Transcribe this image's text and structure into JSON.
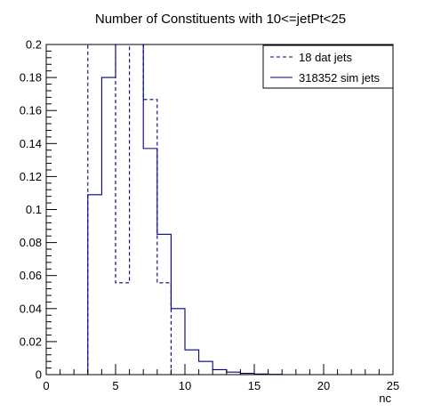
{
  "chart_data": {
    "type": "step-histogram",
    "title": "Number of Constituents with 10<=jetPt<25",
    "xlabel": "nc",
    "ylabel": "",
    "xlim": [
      0,
      25
    ],
    "ylim": [
      0,
      0.2
    ],
    "xticks": [
      {
        "value": 0,
        "label": "0"
      },
      {
        "value": 5,
        "label": "5"
      },
      {
        "value": 10,
        "label": "10"
      },
      {
        "value": 15,
        "label": "15"
      },
      {
        "value": 20,
        "label": "20"
      },
      {
        "value": 25,
        "label": "25"
      }
    ],
    "yticks": [
      {
        "value": 0,
        "label": "0"
      },
      {
        "value": 0.02,
        "label": "0.02"
      },
      {
        "value": 0.04,
        "label": "0.04"
      },
      {
        "value": 0.06,
        "label": "0.06"
      },
      {
        "value": 0.08,
        "label": "0.08"
      },
      {
        "value": 0.1,
        "label": "0.1"
      },
      {
        "value": 0.12,
        "label": "0.12"
      },
      {
        "value": 0.14,
        "label": "0.14"
      },
      {
        "value": 0.16,
        "label": "0.16"
      },
      {
        "value": 0.18,
        "label": "0.18"
      },
      {
        "value": 0.2,
        "label": "0.2"
      }
    ],
    "legend_position": "top-right",
    "bin_edges": [
      0,
      1,
      2,
      3,
      4,
      5,
      6,
      7,
      8,
      9,
      10,
      11,
      12,
      13,
      14,
      15,
      16,
      17,
      18,
      19,
      20,
      21,
      22,
      23,
      24,
      25
    ],
    "series": [
      {
        "name": "18 dat jets",
        "style": "dashed",
        "color": "#000080",
        "values": [
          0,
          0,
          0,
          0.222,
          0.222,
          0.0556,
          0.222,
          0.1667,
          0.0556,
          0,
          0,
          0,
          0,
          0,
          0,
          0,
          0,
          0,
          0,
          0,
          0,
          0,
          0,
          0,
          0
        ]
      },
      {
        "name": "318352 sim jets",
        "style": "solid",
        "color": "#000080",
        "values": [
          0,
          0,
          0,
          0.109,
          0.18,
          0.212,
          0.214,
          0.137,
          0.085,
          0.04,
          0.015,
          0.008,
          0.003,
          0.0015,
          0.0008,
          0.0004,
          0.0002,
          0,
          0,
          0,
          0,
          0,
          0,
          0,
          0
        ]
      }
    ]
  }
}
